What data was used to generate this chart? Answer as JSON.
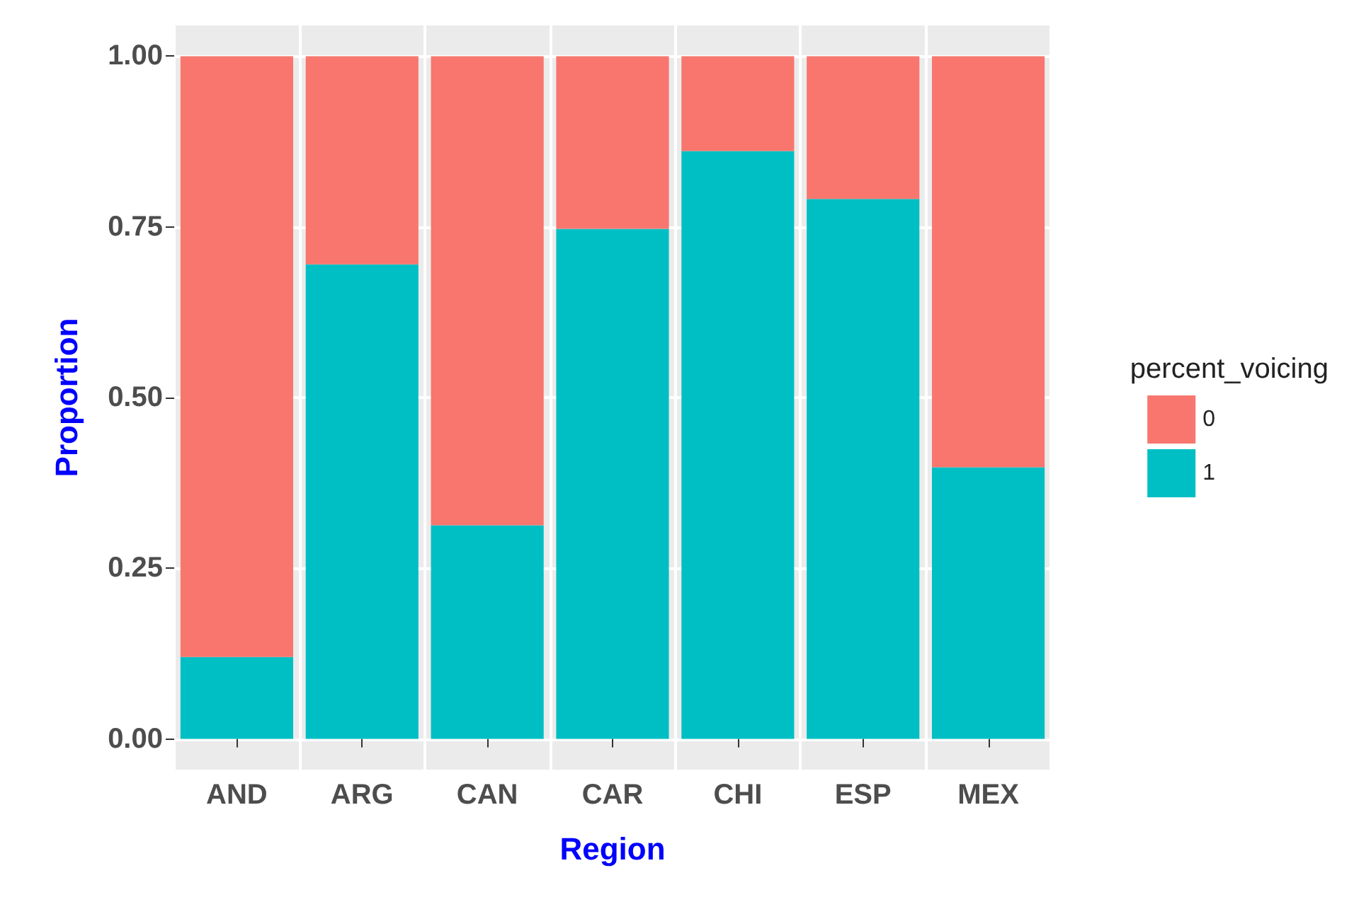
{
  "chart_data": {
    "type": "bar",
    "stacked": true,
    "xlabel": "Region",
    "ylabel": "Proportion",
    "legend_title": "percent_voicing",
    "legend": "right",
    "grid": true,
    "categories": [
      "AND",
      "ARG",
      "CAN",
      "CAR",
      "CHI",
      "ESP",
      "MEX"
    ],
    "series": [
      {
        "name": "1",
        "color": "#00bfc4",
        "values": [
          0.12,
          0.695,
          0.313,
          0.747,
          0.861,
          0.791,
          0.398
        ]
      },
      {
        "name": "0",
        "color": "#f8766d",
        "values": [
          0.88,
          0.305,
          0.687,
          0.253,
          0.139,
          0.209,
          0.602
        ]
      }
    ],
    "ylim": [
      -0.045,
      1.045
    ],
    "yticks": [
      {
        "value": 0,
        "label": "0.00"
      },
      {
        "value": 0.25,
        "label": "0.25"
      },
      {
        "value": 0.5,
        "label": "0.50"
      },
      {
        "value": 0.75,
        "label": "0.75"
      },
      {
        "value": 1,
        "label": "1.00"
      }
    ]
  }
}
